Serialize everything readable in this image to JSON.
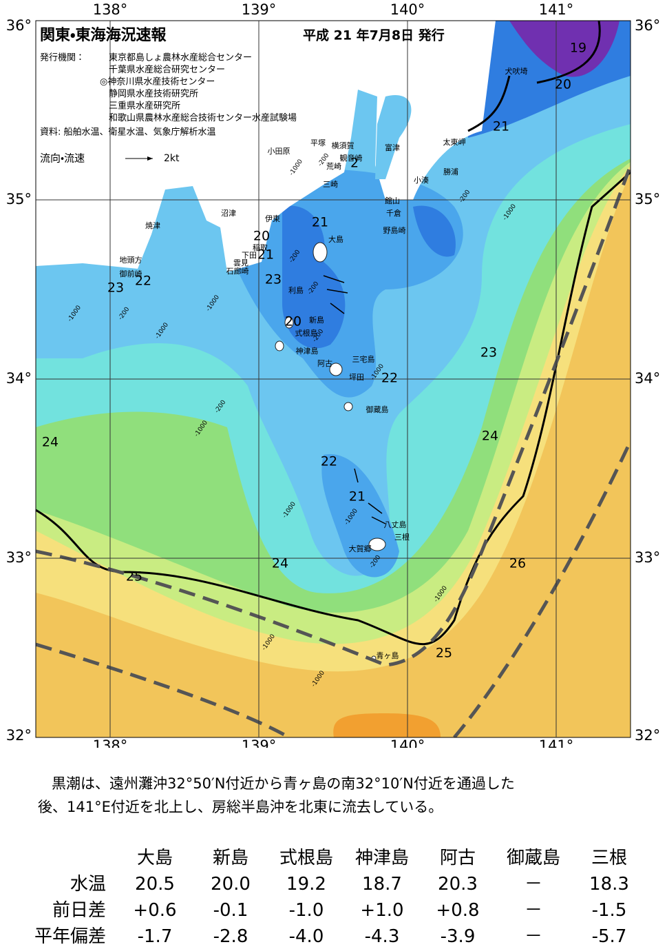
{
  "header": {
    "title": "関東・東海海況速報",
    "date": "平成 21 年7月8日 発行",
    "issuer_label": "発行機関：",
    "issuers": [
      "東京都島しょ農林水産総合センター",
      "千葉県水産総合研究センター",
      "◎神奈川県水産技術センター",
      "静岡県水産技術研究所",
      "三重県水産研究所",
      "和歌山県農林水産総合技術センター水産試験場"
    ],
    "source": "資料: 船舶水温、衛星水温、気象庁解析水温",
    "legend_label": "流向・流速",
    "legend_scale": "2kt"
  },
  "map": {
    "lon_labels": [
      "138°",
      "139°",
      "140°",
      "141°"
    ],
    "lat_labels": [
      "36°",
      "35°",
      "34°",
      "33°",
      "32°"
    ],
    "places": [
      "犬吠埼",
      "太東岬",
      "勝浦",
      "小湊",
      "富津",
      "横須賀",
      "平塚",
      "小田原",
      "観音崎",
      "荒崎",
      "三崎",
      "館山",
      "千倉",
      "野島崎",
      "沼津",
      "伊東",
      "焼津",
      "稲取",
      "下田",
      "雲見",
      "石廊崎",
      "地頭方",
      "御前崎",
      "大島",
      "利島",
      "新島",
      "式根島",
      "神津島",
      "三宅島",
      "阿古",
      "坪田",
      "御蔵島",
      "八丈島",
      "三根",
      "大賀郷",
      "青ヶ島"
    ],
    "isotherms": [
      "19",
      "20",
      "21",
      "21",
      "20",
      "21",
      "22",
      "23",
      "23",
      "20",
      "22",
      "23",
      "24",
      "24",
      "22",
      "21",
      "24",
      "25",
      "26",
      "25",
      "2"
    ],
    "depths": [
      "-1000",
      "-200",
      "-200",
      "-1000",
      "-1000",
      "-200",
      "-1000",
      "-1000",
      "-200",
      "-200",
      "-200",
      "-1000",
      "-200",
      "-1000",
      "-1000",
      "-1000",
      "-200",
      "-1000",
      "-1000",
      "-1000"
    ]
  },
  "note": [
    "黒潮は、遠州灘沖32°50′N付近から青ヶ島の南32°10′N付近を通過した",
    "後、141°E付近を北上し、房総半島沖を北東に流去している。"
  ],
  "table": {
    "columns": [
      "大島",
      "新島",
      "式根島",
      "神津島",
      "阿古",
      "御蔵島",
      "三根"
    ],
    "rows": [
      {
        "label": "水温",
        "values": [
          "20.5",
          "20.0",
          "19.2",
          "18.7",
          "20.3",
          "－",
          "18.3"
        ]
      },
      {
        "label": "前日差",
        "values": [
          "+0.6",
          "-0.1",
          "-1.0",
          "+1.0",
          "+0.8",
          "－",
          "-1.5"
        ]
      },
      {
        "label": "平年偏差",
        "values": [
          "-1.7",
          "-2.8",
          "-4.0",
          "-4.3",
          "-3.9",
          "－",
          "-5.7"
        ]
      }
    ]
  }
}
